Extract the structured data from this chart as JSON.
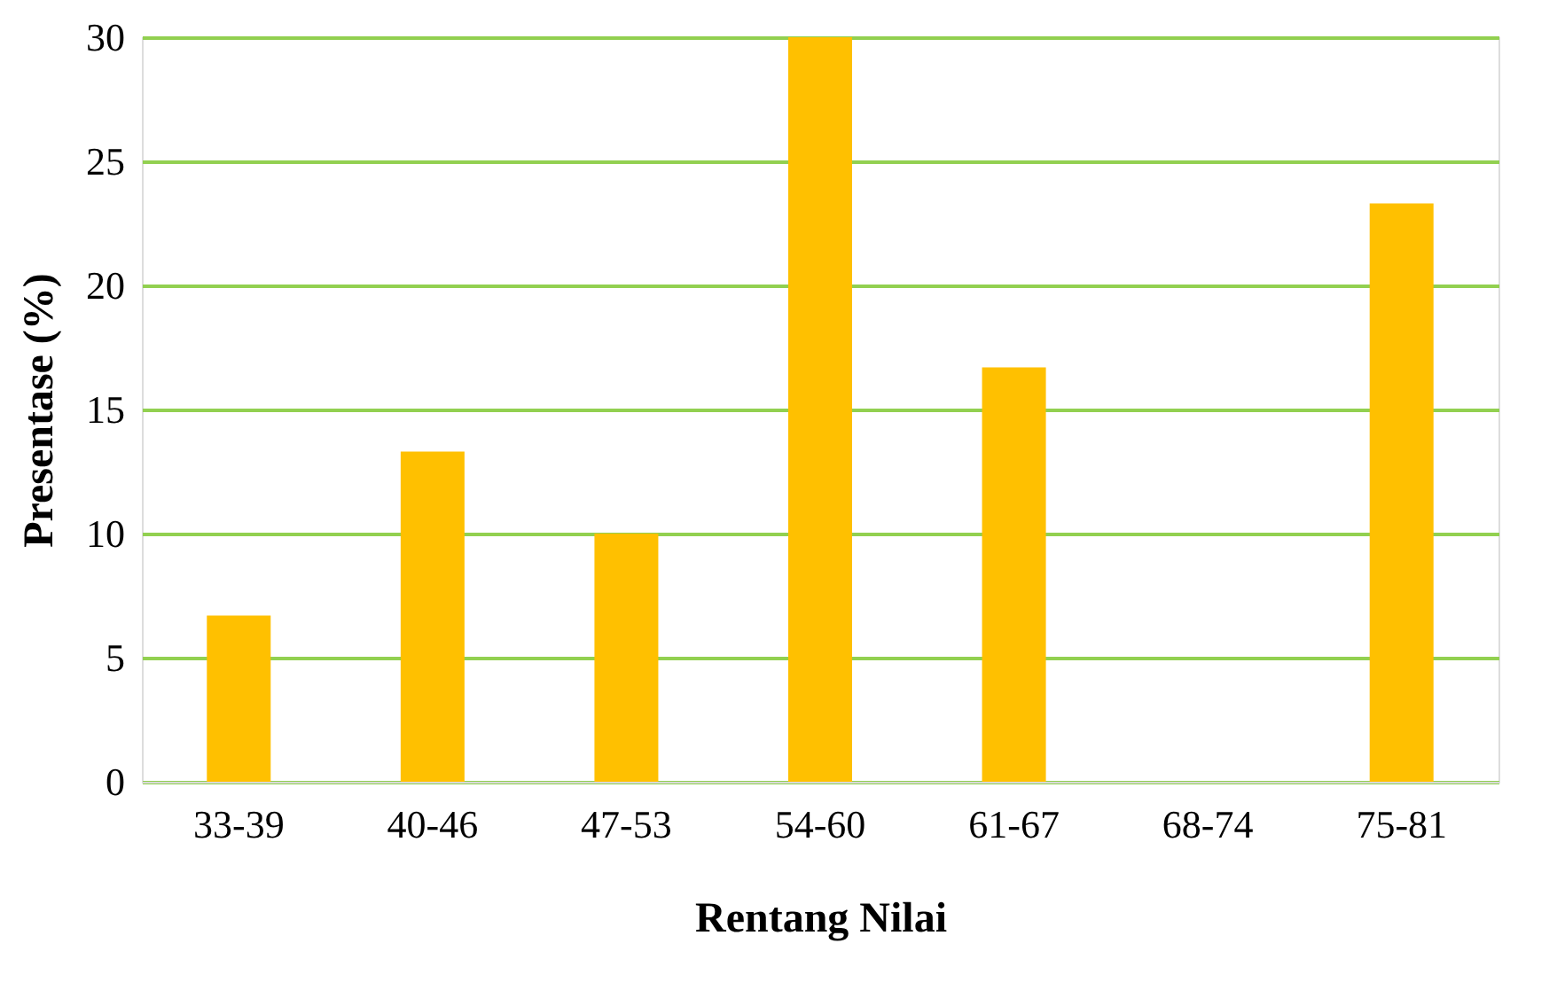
{
  "chart_data": {
    "type": "bar",
    "xlabel": "Rentang Nilai",
    "ylabel": "Presentase (%)",
    "categories": [
      "33-39",
      "40-46",
      "47-53",
      "54-60",
      "61-67",
      "68-74",
      "75-81"
    ],
    "values": [
      6.7,
      13.3,
      10,
      30,
      16.7,
      0,
      23.3
    ],
    "color": "#ffc000",
    "ylim": [
      0,
      30
    ],
    "yticks": [
      0,
      5,
      10,
      15,
      20,
      25,
      30
    ],
    "grid": "y"
  }
}
